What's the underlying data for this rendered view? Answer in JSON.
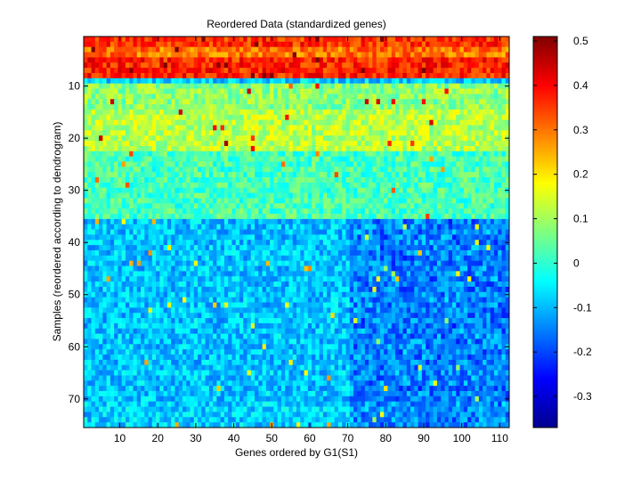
{
  "chart_data": {
    "type": "heatmap",
    "title": "Reordered Data (standardized genes)",
    "xlabel": "Genes ordered by G1(S1)",
    "ylabel": "Samples (reordered according to dendrogram)",
    "n_cols": 112,
    "n_rows": 75,
    "xlim": [
      0.5,
      112.5
    ],
    "ylim": [
      0.5,
      75.5
    ],
    "x_ticks": [
      10,
      20,
      30,
      40,
      50,
      60,
      70,
      80,
      90,
      100,
      110
    ],
    "y_ticks": [
      10,
      20,
      30,
      40,
      50,
      60,
      70
    ],
    "colormap": "jet",
    "color_range": [
      -0.37,
      0.51
    ],
    "colorbar_ticks": [
      -0.3,
      -0.2,
      -0.1,
      0,
      0.1,
      0.2,
      0.3,
      0.4,
      0.5
    ],
    "colorbar_tick_labels": [
      "-0.3",
      "-0.2",
      "-0.1",
      "0",
      "0.1",
      "0.2",
      "0.3",
      "0.4",
      "0.5"
    ],
    "row_band_means": [
      {
        "rows": [
          1,
          2
        ],
        "value": 0.36
      },
      {
        "rows": [
          3,
          4
        ],
        "value": 0.3
      },
      {
        "rows": [
          5,
          8
        ],
        "value": 0.37
      },
      {
        "rows": [
          9,
          9
        ],
        "value": -0.08
      },
      {
        "rows": [
          10,
          14
        ],
        "value": 0.08
      },
      {
        "rows": [
          15,
          22
        ],
        "value": 0.12
      },
      {
        "rows": [
          23,
          35
        ],
        "value": 0.02
      },
      {
        "rows": [
          36,
          70
        ],
        "value": -0.09
      },
      {
        "rows": [
          71,
          75
        ],
        "value": -0.08
      }
    ],
    "grid": false
  }
}
